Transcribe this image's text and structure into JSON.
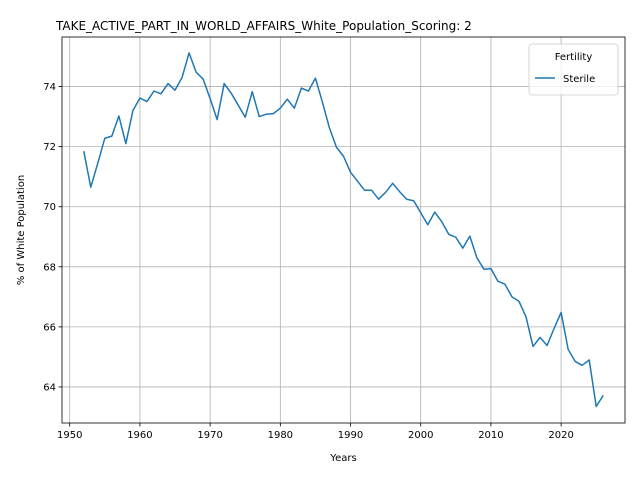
{
  "chart_data": {
    "type": "line",
    "title": "TAKE_ACTIVE_PART_IN_WORLD_AFFAIRS_White_Population_Scoring: 2",
    "xlabel": "Years",
    "ylabel": "% of White Population",
    "xlim": [
      1948.9,
      2029.1
    ],
    "ylim": [
      62.8,
      75.65
    ],
    "xticks": [
      1950,
      1960,
      1970,
      1980,
      1990,
      2000,
      2010,
      2020
    ],
    "yticks": [
      64,
      66,
      68,
      70,
      72,
      74
    ],
    "grid": true,
    "legend": {
      "title": "Fertility",
      "position": "top-right"
    },
    "series": [
      {
        "name": "Sterile",
        "color": "#1f77b4",
        "x": [
          1952,
          1953,
          1954,
          1955,
          1956,
          1957,
          1958,
          1959,
          1960,
          1961,
          1962,
          1963,
          1964,
          1965,
          1966,
          1967,
          1968,
          1969,
          1970,
          1971,
          1972,
          1973,
          1974,
          1975,
          1976,
          1977,
          1978,
          1979,
          1980,
          1981,
          1982,
          1983,
          1984,
          1985,
          1986,
          1987,
          1988,
          1989,
          1990,
          1991,
          1992,
          1993,
          1994,
          1995,
          1996,
          1997,
          1998,
          1999,
          2000,
          2001,
          2002,
          2003,
          2004,
          2005,
          2006,
          2007,
          2008,
          2009,
          2010,
          2011,
          2012,
          2013,
          2014,
          2015,
          2016,
          2017,
          2018,
          2019,
          2020,
          2021,
          2022,
          2023,
          2024,
          2025,
          2026
        ],
        "y": [
          71.85,
          70.65,
          71.45,
          72.28,
          72.35,
          73.02,
          72.1,
          73.2,
          73.62,
          73.5,
          73.85,
          73.76,
          74.1,
          73.88,
          74.3,
          75.12,
          74.48,
          74.25,
          73.6,
          72.9,
          74.1,
          73.78,
          73.38,
          72.98,
          73.83,
          73.0,
          73.08,
          73.1,
          73.28,
          73.58,
          73.28,
          73.95,
          73.85,
          74.28,
          73.48,
          72.62,
          71.98,
          71.68,
          71.15,
          70.85,
          70.55,
          70.55,
          70.25,
          70.48,
          70.78,
          70.5,
          70.25,
          70.2,
          69.8,
          69.4,
          69.82,
          69.5,
          69.08,
          68.98,
          68.62,
          69.02,
          68.3,
          67.92,
          67.94,
          67.52,
          67.42,
          67.0,
          66.85,
          66.33,
          65.35,
          65.65,
          65.38,
          65.95,
          66.48,
          65.25,
          64.85,
          64.72,
          64.9,
          63.35,
          63.72
        ]
      }
    ]
  }
}
